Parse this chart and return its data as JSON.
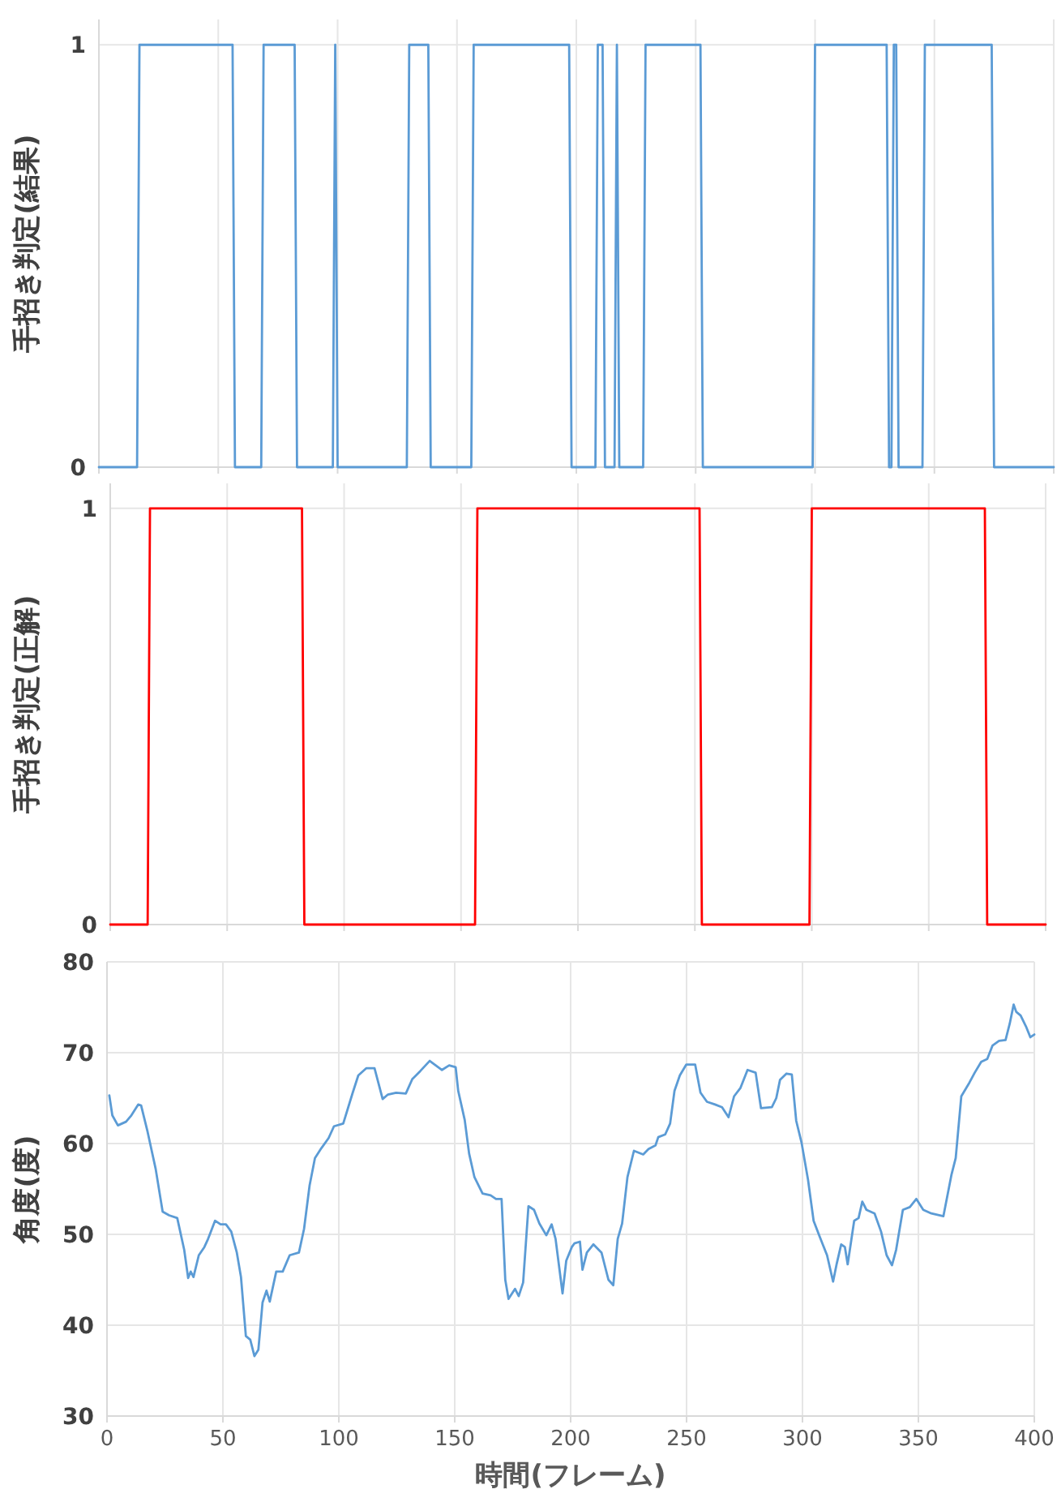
{
  "chart_data": [
    {
      "type": "line",
      "ylabel": "手招き判定(結果)",
      "ylim": [
        0,
        1.06
      ],
      "yticks": [
        0,
        1
      ],
      "tick_labels": "y",
      "grid": true,
      "categories": [
        null,
        null,
        null,
        null,
        null,
        null,
        null,
        null,
        null,
        null,
        null,
        null,
        null,
        null,
        null,
        null,
        null,
        null,
        null,
        null,
        null,
        null,
        null,
        null,
        null,
        null,
        null,
        null,
        null,
        null,
        null,
        null,
        null,
        null,
        null,
        null,
        null,
        null,
        null,
        null,
        null,
        null,
        null,
        null,
        null,
        null,
        null,
        null,
        null,
        null,
        null,
        null,
        null,
        null,
        null,
        null,
        null,
        null,
        null,
        null,
        null,
        null,
        null,
        null,
        null,
        null,
        null,
        null,
        null,
        null,
        null,
        null,
        null,
        null,
        null,
        null,
        null,
        null,
        null,
        null,
        null,
        null,
        null,
        null,
        null,
        null,
        null,
        null,
        null,
        null,
        null,
        null,
        null,
        null,
        null,
        null,
        null,
        null,
        null,
        null,
        null,
        null,
        null,
        null,
        null,
        null,
        null,
        null,
        null,
        null,
        null,
        null,
        null,
        null,
        null,
        null,
        null,
        null,
        null,
        null,
        null,
        null,
        null,
        null,
        null,
        null,
        null,
        null,
        null,
        null,
        null,
        null,
        null,
        null,
        null,
        null,
        null,
        null,
        null,
        null,
        null,
        null,
        null,
        null,
        null,
        null,
        null,
        null,
        null,
        null,
        null,
        null,
        null,
        null,
        null,
        null,
        null,
        null,
        null,
        null,
        null,
        null,
        null,
        null,
        null,
        null,
        null,
        null,
        null,
        null,
        null,
        null,
        null,
        null,
        null,
        null,
        null,
        null,
        null,
        null,
        null,
        null,
        null,
        null,
        null,
        null,
        null,
        null,
        null,
        null,
        null,
        null,
        null,
        null,
        null,
        null,
        null,
        null,
        null,
        null,
        null,
        null,
        null,
        null,
        null,
        null,
        null,
        null,
        null,
        null,
        null,
        null,
        null,
        null,
        null,
        null,
        null,
        null,
        null,
        null,
        null,
        null,
        null,
        null,
        null,
        null,
        null,
        null,
        null,
        null,
        null,
        null,
        null,
        null,
        null,
        null,
        null,
        null,
        null,
        null,
        null,
        null,
        null,
        null,
        null,
        null,
        null,
        null,
        null,
        null,
        null,
        null,
        null,
        null,
        null,
        null,
        null,
        null,
        null,
        null,
        null,
        null,
        null,
        null,
        null,
        null,
        null,
        null,
        null,
        null,
        null,
        null,
        null,
        null,
        null,
        null,
        null,
        null,
        null,
        null,
        null,
        null,
        null,
        null,
        null,
        null,
        null,
        null,
        null,
        null,
        null,
        null,
        null,
        null,
        null,
        null,
        null,
        null,
        null,
        null,
        null,
        null,
        null,
        null,
        null,
        null,
        null,
        null,
        null,
        null,
        null,
        null,
        null,
        null,
        null,
        null,
        null,
        null,
        null,
        null,
        null,
        null,
        null,
        null,
        null,
        null,
        null,
        null,
        null,
        null,
        null,
        null,
        null,
        null,
        null,
        null,
        null,
        null,
        null,
        null,
        null,
        null,
        null,
        null,
        null,
        null,
        null,
        null,
        null,
        null,
        null,
        null,
        null,
        null,
        null,
        null,
        null,
        null,
        null,
        null,
        null,
        null,
        null,
        null,
        null,
        null,
        null,
        null,
        null,
        null,
        null,
        null,
        null,
        null,
        null,
        null,
        null,
        null,
        null,
        null,
        null,
        null,
        null,
        null,
        null,
        null,
        null,
        null,
        null,
        null,
        null,
        null,
        null,
        null,
        null,
        null,
        null,
        null,
        null,
        null,
        null
      ],
      "series": [
        {
          "color": "#5b9bd5",
          "values": [
            0,
            0,
            0,
            0,
            0,
            0,
            0,
            0,
            0,
            0,
            0,
            0,
            0,
            0,
            0,
            0,
            0,
            1,
            1,
            1,
            1,
            1,
            1,
            1,
            1,
            1,
            1,
            1,
            1,
            1,
            1,
            1,
            1,
            1,
            1,
            1,
            1,
            1,
            1,
            1,
            1,
            1,
            1,
            1,
            1,
            1,
            1,
            1,
            1,
            1,
            1,
            1,
            1,
            1,
            1,
            1,
            1,
            0,
            0,
            0,
            0,
            0,
            0,
            0,
            0,
            0,
            0,
            0,
            0,
            1,
            1,
            1,
            1,
            1,
            1,
            1,
            1,
            1,
            1,
            1,
            1,
            1,
            1,
            0,
            0,
            0,
            0,
            0,
            0,
            0,
            0,
            0,
            0,
            0,
            0,
            0,
            0,
            0,
            0,
            1,
            0,
            0,
            0,
            0,
            0,
            0,
            0,
            0,
            0,
            0,
            0,
            0,
            0,
            0,
            0,
            0,
            0,
            0,
            0,
            0,
            0,
            0,
            0,
            0,
            0,
            0,
            0,
            0,
            0,
            0,
            1,
            1,
            1,
            1,
            1,
            1,
            1,
            1,
            1,
            0,
            0,
            0,
            0,
            0,
            0,
            0,
            0,
            0,
            0,
            0,
            0,
            0,
            0,
            0,
            0,
            0,
            0,
            1,
            1,
            1,
            1,
            1,
            1,
            1,
            1,
            1,
            1,
            1,
            1,
            1,
            1,
            1,
            1,
            1,
            1,
            1,
            1,
            1,
            1,
            1,
            1,
            1,
            1,
            1,
            1,
            1,
            1,
            1,
            1,
            1,
            1,
            1,
            1,
            1,
            1,
            1,
            1,
            1,
            0,
            0,
            0,
            0,
            0,
            0,
            0,
            0,
            0,
            0,
            0,
            1,
            1,
            1,
            0,
            0,
            0,
            0,
            0,
            1,
            0,
            0,
            0,
            0,
            0,
            0,
            0,
            0,
            0,
            0,
            0,
            1,
            1,
            1,
            1,
            1,
            1,
            1,
            1,
            1,
            1,
            1,
            1,
            1,
            1,
            1,
            1,
            1,
            1,
            1,
            1,
            1,
            1,
            1,
            1,
            0,
            0,
            0,
            0,
            0,
            0,
            0,
            0,
            0,
            0,
            0,
            0,
            0,
            0,
            0,
            0,
            0,
            0,
            0,
            0,
            0,
            0,
            0,
            0,
            0,
            0,
            0,
            0,
            0,
            0,
            0,
            0,
            0,
            0,
            0,
            0,
            0,
            0,
            0,
            0,
            0,
            0,
            0,
            0,
            0,
            0,
            0,
            1,
            1,
            1,
            1,
            1,
            1,
            1,
            1,
            1,
            1,
            1,
            1,
            1,
            1,
            1,
            1,
            1,
            1,
            1,
            1,
            1,
            1,
            1,
            1,
            1,
            1,
            1,
            1,
            1,
            1,
            1,
            0,
            0,
            1,
            1,
            0,
            0,
            0,
            0,
            0,
            0,
            0,
            0,
            0,
            0,
            0,
            1,
            1,
            1,
            1,
            1,
            1,
            1,
            1,
            1,
            1,
            1,
            1,
            1,
            1,
            1,
            1,
            1,
            1,
            1,
            1,
            1,
            1,
            1,
            1,
            1,
            1,
            1,
            1,
            1,
            0,
            0,
            0,
            0,
            0,
            0,
            0,
            0,
            0,
            0,
            0,
            0,
            0,
            0,
            0,
            0,
            0,
            0,
            0,
            0,
            0,
            0,
            0,
            0,
            0,
            0
          ]
        }
      ]
    },
    {
      "type": "line",
      "ylabel": "手招き判定(正解)",
      "ylim": [
        0,
        1.06
      ],
      "yticks": [
        0,
        1
      ],
      "tick_labels": "y",
      "grid": true,
      "categories": [
        null,
        null,
        null,
        null,
        null,
        null,
        null,
        null,
        null,
        null,
        null,
        null,
        null,
        null,
        null,
        null,
        null,
        null,
        null,
        null,
        null,
        null,
        null,
        null,
        null,
        null,
        null,
        null,
        null,
        null,
        null,
        null,
        null,
        null,
        null,
        null,
        null,
        null,
        null,
        null,
        null,
        null,
        null,
        null,
        null,
        null,
        null,
        null,
        null,
        null,
        null,
        null,
        null,
        null,
        null,
        null,
        null,
        null,
        null,
        null,
        null,
        null,
        null,
        null,
        null,
        null,
        null,
        null,
        null,
        null,
        null,
        null,
        null,
        null,
        null,
        null,
        null,
        null,
        null,
        null,
        null,
        null,
        null,
        null,
        null,
        null,
        null,
        null,
        null,
        null,
        null,
        null,
        null,
        null,
        null,
        null,
        null,
        null,
        null,
        null,
        null,
        null,
        null,
        null,
        null,
        null,
        null,
        null,
        null,
        null,
        null,
        null,
        null,
        null,
        null,
        null,
        null,
        null,
        null,
        null,
        null,
        null,
        null,
        null,
        null,
        null,
        null,
        null,
        null,
        null,
        null,
        null,
        null,
        null,
        null,
        null,
        null,
        null,
        null,
        null,
        null,
        null,
        null,
        null,
        null,
        null,
        null,
        null,
        null,
        null,
        null,
        null,
        null,
        null,
        null,
        null,
        null,
        null,
        null,
        null,
        null,
        null,
        null,
        null,
        null,
        null,
        null,
        null,
        null,
        null,
        null,
        null,
        null,
        null,
        null,
        null,
        null,
        null,
        null,
        null,
        null,
        null,
        null,
        null,
        null,
        null,
        null,
        null,
        null,
        null,
        null,
        null,
        null,
        null,
        null,
        null,
        null,
        null,
        null,
        null,
        null,
        null,
        null,
        null,
        null,
        null,
        null,
        null,
        null,
        null,
        null,
        null,
        null,
        null,
        null,
        null,
        null,
        null,
        null,
        null,
        null,
        null,
        null,
        null,
        null,
        null,
        null,
        null,
        null,
        null,
        null,
        null,
        null,
        null,
        null,
        null,
        null,
        null,
        null,
        null,
        null,
        null,
        null,
        null,
        null,
        null,
        null,
        null,
        null,
        null,
        null,
        null,
        null,
        null,
        null,
        null,
        null,
        null,
        null,
        null,
        null,
        null,
        null,
        null,
        null,
        null,
        null,
        null,
        null,
        null,
        null,
        null,
        null,
        null,
        null,
        null,
        null,
        null,
        null,
        null,
        null,
        null,
        null,
        null,
        null,
        null,
        null,
        null,
        null,
        null,
        null,
        null,
        null,
        null,
        null,
        null,
        null,
        null,
        null,
        null,
        null,
        null,
        null,
        null,
        null,
        null,
        null,
        null,
        null,
        null,
        null,
        null,
        null,
        null,
        null,
        null,
        null,
        null,
        null,
        null,
        null,
        null,
        null,
        null,
        null,
        null,
        null,
        null,
        null,
        null,
        null,
        null,
        null,
        null,
        null,
        null,
        null,
        null,
        null,
        null,
        null,
        null,
        null,
        null,
        null,
        null,
        null,
        null,
        null,
        null,
        null,
        null,
        null,
        null,
        null,
        null,
        null,
        null,
        null,
        null,
        null,
        null,
        null,
        null,
        null,
        null,
        null,
        null,
        null,
        null,
        null,
        null,
        null,
        null,
        null,
        null,
        null,
        null,
        null,
        null,
        null,
        null,
        null,
        null,
        null,
        null,
        null,
        null,
        null,
        null,
        null,
        null,
        null,
        null,
        null,
        null,
        null,
        null,
        null,
        null,
        null
      ],
      "series": [
        {
          "color": "#ff0000",
          "values": [
            0,
            0,
            0,
            0,
            0,
            0,
            0,
            0,
            0,
            0,
            0,
            0,
            0,
            0,
            0,
            0,
            0,
            1,
            1,
            1,
            1,
            1,
            1,
            1,
            1,
            1,
            1,
            1,
            1,
            1,
            1,
            1,
            1,
            1,
            1,
            1,
            1,
            1,
            1,
            1,
            1,
            1,
            1,
            1,
            1,
            1,
            1,
            1,
            1,
            1,
            1,
            1,
            1,
            1,
            1,
            1,
            1,
            1,
            1,
            1,
            1,
            1,
            1,
            1,
            1,
            1,
            1,
            1,
            1,
            1,
            1,
            1,
            1,
            1,
            1,
            1,
            1,
            1,
            1,
            1,
            1,
            1,
            1,
            0,
            0,
            0,
            0,
            0,
            0,
            0,
            0,
            0,
            0,
            0,
            0,
            0,
            0,
            0,
            0,
            0,
            0,
            0,
            0,
            0,
            0,
            0,
            0,
            0,
            0,
            0,
            0,
            0,
            0,
            0,
            0,
            0,
            0,
            0,
            0,
            0,
            0,
            0,
            0,
            0,
            0,
            0,
            0,
            0,
            0,
            0,
            0,
            0,
            0,
            0,
            0,
            0,
            0,
            0,
            0,
            0,
            0,
            0,
            0,
            0,
            0,
            0,
            0,
            0,
            0,
            0,
            0,
            0,
            0,
            0,
            0,
            0,
            0,
            1,
            1,
            1,
            1,
            1,
            1,
            1,
            1,
            1,
            1,
            1,
            1,
            1,
            1,
            1,
            1,
            1,
            1,
            1,
            1,
            1,
            1,
            1,
            1,
            1,
            1,
            1,
            1,
            1,
            1,
            1,
            1,
            1,
            1,
            1,
            1,
            1,
            1,
            1,
            1,
            1,
            1,
            1,
            1,
            1,
            1,
            1,
            1,
            1,
            1,
            1,
            1,
            1,
            1,
            1,
            1,
            1,
            1,
            1,
            1,
            1,
            1,
            1,
            1,
            1,
            1,
            1,
            1,
            1,
            1,
            1,
            1,
            1,
            1,
            1,
            1,
            1,
            1,
            1,
            1,
            1,
            1,
            1,
            1,
            1,
            1,
            1,
            1,
            1,
            1,
            1,
            1,
            1,
            1,
            1,
            1,
            0,
            0,
            0,
            0,
            0,
            0,
            0,
            0,
            0,
            0,
            0,
            0,
            0,
            0,
            0,
            0,
            0,
            0,
            0,
            0,
            0,
            0,
            0,
            0,
            0,
            0,
            0,
            0,
            0,
            0,
            0,
            0,
            0,
            0,
            0,
            0,
            0,
            0,
            0,
            0,
            0,
            0,
            0,
            0,
            0,
            0,
            0,
            1,
            1,
            1,
            1,
            1,
            1,
            1,
            1,
            1,
            1,
            1,
            1,
            1,
            1,
            1,
            1,
            1,
            1,
            1,
            1,
            1,
            1,
            1,
            1,
            1,
            1,
            1,
            1,
            1,
            1,
            1,
            1,
            1,
            1,
            1,
            1,
            1,
            1,
            1,
            1,
            1,
            1,
            1,
            1,
            1,
            1,
            1,
            1,
            1,
            1,
            1,
            1,
            1,
            1,
            1,
            1,
            1,
            1,
            1,
            1,
            1,
            1,
            1,
            1,
            1,
            1,
            1,
            1,
            1,
            1,
            1,
            1,
            1,
            1,
            1,
            0,
            0,
            0,
            0,
            0,
            0,
            0,
            0,
            0,
            0,
            0,
            0,
            0,
            0,
            0,
            0,
            0,
            0,
            0,
            0,
            0,
            0,
            0,
            0,
            0,
            0
          ]
        }
      ]
    },
    {
      "type": "line",
      "xlabel": "時間(フレーム)",
      "ylabel": "角度(度)",
      "xlim": [
        0,
        400
      ],
      "ylim": [
        30,
        80
      ],
      "xticks": [
        0,
        50,
        100,
        150,
        200,
        250,
        300,
        350,
        400
      ],
      "yticks": [
        30,
        40,
        50,
        60,
        70,
        80
      ],
      "grid": true,
      "series": [
        {
          "color": "#5b9bd5",
          "x": [
            1,
            2.3,
            4.7,
            8.2,
            10.5,
            13.5,
            14.7,
            17.5,
            21,
            24,
            26.8,
            30.3,
            33.3,
            35,
            36.1,
            37.3,
            39.6,
            42,
            43.6,
            46.6,
            49,
            51.3,
            53.6,
            56,
            57.8,
            59.9,
            61.8,
            63.6,
            65.3,
            67.1,
            68.8,
            70.2,
            73,
            75.8,
            78.8,
            82.8,
            85,
            87.4,
            89.7,
            92.5,
            95.6,
            97.9,
            101.9,
            106,
            108.4,
            111.9,
            115.4,
            118.9,
            121.2,
            124.7,
            128.9,
            131.7,
            135.2,
            139.2,
            144.5,
            147.6,
            150.4,
            151.5,
            154.3,
            156.2,
            158.5,
            162,
            165.5,
            167.8,
            170.2,
            171.8,
            173.2,
            176,
            177.6,
            179.5,
            181.8,
            184.2,
            186.5,
            189.5,
            191.8,
            193.5,
            196.5,
            198.1,
            200.5,
            201.6,
            204,
            205.1,
            207,
            209.8,
            213.3,
            216.3,
            218.4,
            220.3,
            222.2,
            224.5,
            227.3,
            231.3,
            233.6,
            236.6,
            237.8,
            240.8,
            242.9,
            244.8,
            247.1,
            249.9,
            253.7,
            256,
            258.8,
            262.3,
            265.3,
            268.1,
            270.5,
            273.2,
            276.3,
            279.8,
            282.1,
            286.8,
            288.7,
            290.3,
            293.1,
            295.4,
            297.3,
            299.6,
            302.4,
            304.8,
            307.8,
            310.6,
            313.2,
            314.8,
            316.7,
            318.3,
            319.5,
            322.3,
            324.2,
            325.8,
            327.6,
            331.1,
            333.9,
            336.3,
            338.6,
            340.4,
            343.3,
            346.3,
            349.1,
            352.1,
            355.6,
            360.8,
            364.3,
            366.1,
            368.5,
            372,
            374.3,
            377.1,
            379.7,
            382,
            384.8,
            387.6,
            389.4,
            391.1,
            392.2,
            394.1,
            396.4,
            398.3,
            400
          ],
          "values": [
            65.3,
            63.1,
            62.0,
            62.4,
            63.1,
            64.3,
            64.2,
            61.3,
            57.2,
            52.5,
            52.1,
            51.8,
            48.3,
            45.2,
            45.9,
            45.3,
            47.7,
            48.6,
            49.5,
            51.5,
            51.1,
            51.1,
            50.3,
            48.0,
            45.3,
            38.8,
            38.4,
            36.6,
            37.3,
            42.5,
            43.8,
            42.6,
            45.9,
            45.9,
            47.7,
            48.0,
            50.6,
            55.4,
            58.4,
            59.5,
            60.6,
            61.9,
            62.2,
            65.6,
            67.5,
            68.3,
            68.3,
            64.9,
            65.4,
            65.6,
            65.5,
            67.1,
            68.0,
            69.1,
            68.1,
            68.6,
            68.4,
            65.8,
            62.6,
            58.9,
            56.3,
            54.5,
            54.3,
            53.9,
            53.9,
            45.0,
            42.9,
            44.0,
            43.2,
            44.7,
            53.1,
            52.7,
            51.2,
            49.9,
            51.1,
            49.5,
            43.5,
            47.1,
            48.6,
            49.0,
            49.2,
            46.1,
            48.0,
            48.9,
            48.0,
            45.0,
            44.4,
            49.5,
            51.2,
            56.3,
            59.2,
            58.8,
            59.4,
            59.8,
            60.7,
            61.0,
            62.2,
            65.8,
            67.5,
            68.7,
            68.7,
            65.6,
            64.6,
            64.3,
            64.0,
            62.9,
            65.2,
            66.1,
            68.1,
            67.8,
            63.9,
            64.0,
            65.0,
            67.0,
            67.7,
            67.6,
            62.5,
            60.1,
            56.0,
            51.5,
            49.5,
            47.7,
            44.8,
            46.8,
            48.9,
            48.6,
            46.7,
            51.5,
            51.8,
            53.6,
            52.7,
            52.3,
            50.3,
            47.7,
            46.6,
            48.3,
            52.7,
            53.0,
            53.9,
            52.7,
            52.3,
            52.0,
            56.6,
            58.4,
            65.2,
            66.7,
            67.8,
            69.0,
            69.3,
            70.8,
            71.3,
            71.4,
            73.2,
            75.3,
            74.5,
            74.1,
            72.9,
            71.7,
            72.0
          ]
        }
      ]
    }
  ]
}
